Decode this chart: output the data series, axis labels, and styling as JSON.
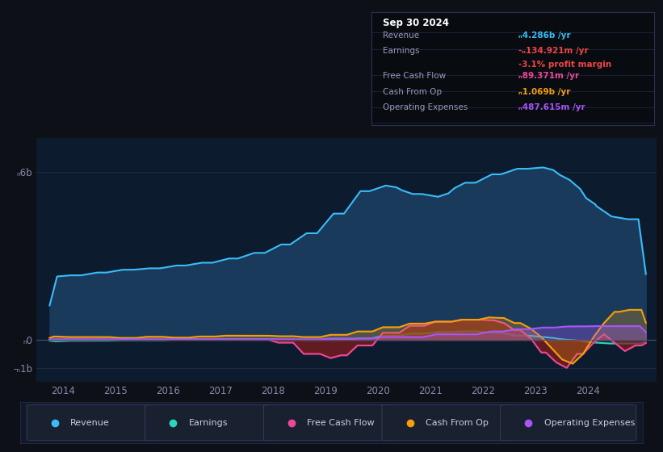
{
  "background_color": "#0d1117",
  "plot_bg_color": "#0d1b2e",
  "x_ticks": [
    2014,
    2015,
    2016,
    2017,
    2018,
    2019,
    2020,
    2021,
    2022,
    2023,
    2024
  ],
  "y_ticks_labels": [
    "-ₙ1b",
    "ₙ0",
    "ₙ6b"
  ],
  "y_ticks_values": [
    -1000000000,
    0,
    6000000000
  ],
  "ylim": [
    -1500000000,
    7200000000
  ],
  "xlim": [
    2013.5,
    2025.3
  ],
  "series": {
    "revenue": {
      "color": "#38bdf8",
      "fill_color": "#1a3a5c"
    },
    "earnings": {
      "color": "#2dd4bf",
      "fill_color": "#1a4a4a"
    },
    "free_cash_flow": {
      "color": "#ec4899",
      "fill_color": "#7f1d1d"
    },
    "cash_from_op": {
      "color": "#f59e0b",
      "fill_color": "#f59e0b"
    },
    "operating_expenses": {
      "color": "#a855f7",
      "fill_color": "#a855f7"
    }
  },
  "infobox": {
    "date": "Sep 30 2024",
    "rows": [
      {
        "label": "Revenue",
        "value": "ₙ4.286b /yr",
        "value_color": "#38bdf8",
        "sub": null
      },
      {
        "label": "Earnings",
        "value": "-ₙ134.921m /yr",
        "value_color": "#ef4444",
        "sub": "-3.1% profit margin"
      },
      {
        "label": "Free Cash Flow",
        "value": "ₙ89.371m /yr",
        "value_color": "#ec4899",
        "sub": null
      },
      {
        "label": "Cash From Op",
        "value": "ₙ1.069b /yr",
        "value_color": "#f59e0b",
        "sub": null
      },
      {
        "label": "Operating Expenses",
        "value": "ₙ487.615m /yr",
        "value_color": "#a855f7",
        "sub": null
      }
    ]
  },
  "legend": [
    {
      "label": "Revenue",
      "color": "#38bdf8"
    },
    {
      "label": "Earnings",
      "color": "#2dd4bf"
    },
    {
      "label": "Free Cash Flow",
      "color": "#ec4899"
    },
    {
      "label": "Cash From Op",
      "color": "#f59e0b"
    },
    {
      "label": "Operating Expenses",
      "color": "#a855f7"
    }
  ]
}
